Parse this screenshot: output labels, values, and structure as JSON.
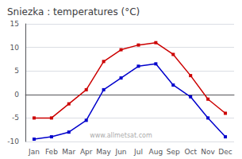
{
  "chart_data": {
    "type": "line",
    "title": "Sniezka : temperatures (°C)",
    "categories": [
      "Jan",
      "Feb",
      "Mar",
      "Apr",
      "May",
      "Jun",
      "Jul",
      "Aug",
      "Sep",
      "Oct",
      "Nov",
      "Dec"
    ],
    "series": [
      {
        "color": "#cc0000",
        "marker": "square",
        "values": [
          -5,
          -5,
          -2,
          1,
          7,
          9.5,
          10.5,
          11,
          8.5,
          4,
          -1,
          -4
        ]
      },
      {
        "color": "#0000cc",
        "marker": "square",
        "values": [
          -9.5,
          -9,
          -8,
          -5.5,
          1,
          3.5,
          6,
          6.5,
          2,
          -0.5,
          -5,
          -9
        ]
      }
    ],
    "ylim": [
      -10,
      15
    ],
    "yticks": [
      -10,
      -5,
      0,
      5,
      10,
      15
    ],
    "grid": true,
    "annotation": "www.allmetsat.com"
  }
}
